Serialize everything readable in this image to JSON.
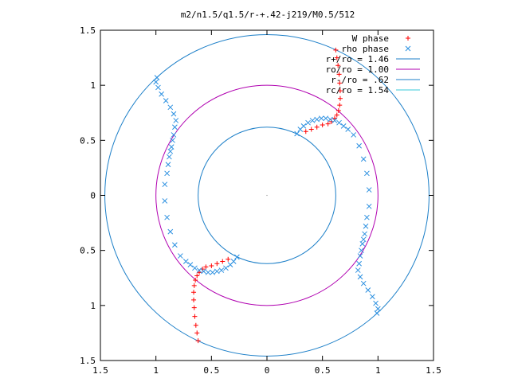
{
  "chart_data": {
    "type": "scatter",
    "title": "m2/n1.5/q1.5/r-+.42-j219/M0.5/512",
    "xlabel": "",
    "ylabel": "",
    "xlim": [
      -1.5,
      1.5
    ],
    "ylim": [
      -1.5,
      1.5
    ],
    "x_ticks": [
      -1.5,
      -1,
      -0.5,
      0,
      0.5,
      1,
      1.5
    ],
    "y_ticks": [
      -1.5,
      -1,
      -0.5,
      0,
      0.5,
      1,
      1.5
    ],
    "x_tick_labels": [
      "1.5",
      "1",
      "0.5",
      "0",
      "0.5",
      "1",
      "1.5"
    ],
    "y_tick_labels": [
      "1.5",
      "1",
      "0.5",
      "0",
      "0.5",
      "1",
      "1.5"
    ],
    "grid": false,
    "legend_position": "top-right",
    "legend": [
      {
        "label": "W phase",
        "marker": "+",
        "color": "#ff0000"
      },
      {
        "label": "rho phase",
        "marker": "x",
        "color": "#2a8fe0"
      },
      {
        "label": "r+/ro = 1.46",
        "marker": "line",
        "color": "#1c7fc8"
      },
      {
        "label": "ro/ro = 1.00",
        "marker": "line",
        "color": "#b000b0"
      },
      {
        "label": "r-/ro = .62",
        "marker": "line",
        "color": "#1c7fc8"
      },
      {
        "label": "rc/ro = 1.54",
        "marker": "line",
        "color": "#37c8d8"
      }
    ],
    "circles": [
      {
        "name": "r+/ro = 1.46",
        "r": 1.46,
        "color": "#1c7fc8"
      },
      {
        "name": "ro/ro = 1.00",
        "r": 1.0,
        "color": "#b000b0"
      },
      {
        "name": "r-/ro = .62",
        "r": 0.62,
        "color": "#1c7fc8"
      }
    ],
    "series": [
      {
        "name": "W phase",
        "color": "#ff0000",
        "marker": "+",
        "x": [
          0.62,
          0.63,
          0.64,
          0.65,
          0.655,
          0.66,
          0.66,
          0.655,
          0.645,
          0.63,
          0.61,
          0.58,
          0.55,
          0.5,
          0.45,
          0.4,
          0.35,
          -0.62,
          -0.63,
          -0.64,
          -0.65,
          -0.655,
          -0.66,
          -0.66,
          -0.655,
          -0.645,
          -0.63,
          -0.61,
          -0.58,
          -0.55,
          -0.5,
          -0.45,
          -0.4,
          -0.35
        ],
        "y": [
          1.32,
          1.25,
          1.18,
          1.1,
          1.02,
          0.95,
          0.88,
          0.82,
          0.77,
          0.73,
          0.7,
          0.67,
          0.65,
          0.64,
          0.62,
          0.6,
          0.58,
          -1.32,
          -1.25,
          -1.18,
          -1.1,
          -1.02,
          -0.95,
          -0.88,
          -0.82,
          -0.77,
          -0.73,
          -0.7,
          -0.67,
          -0.65,
          -0.64,
          -0.62,
          -0.6,
          -0.58
        ]
      },
      {
        "name": "rho phase",
        "color": "#2a8fe0",
        "marker": "x",
        "x": [
          0.27,
          0.3,
          0.33,
          0.37,
          0.41,
          0.45,
          0.49,
          0.53,
          0.57,
          0.61,
          0.65,
          0.69,
          0.73,
          0.78,
          0.83,
          0.87,
          0.9,
          0.92,
          0.92,
          0.9,
          0.89,
          0.88,
          0.87,
          0.86,
          0.85,
          0.84,
          0.83,
          0.82,
          0.84,
          0.87,
          0.91,
          0.95,
          0.98,
          1.0,
          0.99,
          -0.27,
          -0.3,
          -0.33,
          -0.37,
          -0.41,
          -0.45,
          -0.49,
          -0.53,
          -0.57,
          -0.61,
          -0.65,
          -0.69,
          -0.73,
          -0.78,
          -0.83,
          -0.87,
          -0.9,
          -0.92,
          -0.92,
          -0.9,
          -0.89,
          -0.88,
          -0.87,
          -0.86,
          -0.85,
          -0.84,
          -0.83,
          -0.82,
          -0.84,
          -0.87,
          -0.91,
          -0.95,
          -0.98,
          -1.0,
          -0.99
        ],
        "y": [
          0.56,
          0.6,
          0.63,
          0.66,
          0.68,
          0.69,
          0.7,
          0.7,
          0.69,
          0.68,
          0.66,
          0.63,
          0.6,
          0.55,
          0.45,
          0.33,
          0.2,
          0.05,
          -0.1,
          -0.2,
          -0.28,
          -0.35,
          -0.4,
          -0.44,
          -0.5,
          -0.55,
          -0.62,
          -0.68,
          -0.74,
          -0.8,
          -0.86,
          -0.92,
          -0.98,
          -1.03,
          -1.07,
          -0.56,
          -0.6,
          -0.63,
          -0.66,
          -0.68,
          -0.69,
          -0.7,
          -0.7,
          -0.69,
          -0.68,
          -0.66,
          -0.63,
          -0.6,
          -0.55,
          -0.45,
          -0.33,
          -0.2,
          -0.05,
          0.1,
          0.2,
          0.28,
          0.35,
          0.4,
          0.44,
          0.5,
          0.55,
          0.62,
          0.68,
          0.74,
          0.8,
          0.86,
          0.92,
          0.98,
          1.03,
          1.07
        ]
      }
    ]
  }
}
